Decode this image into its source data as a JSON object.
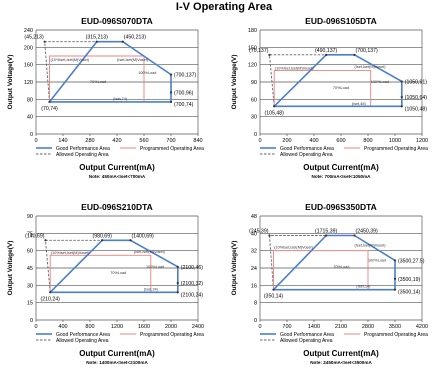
{
  "page_title": "I-V Operating Area",
  "colors": {
    "good": "#4a7fd0",
    "programmed": "#f08080",
    "allowed": "#666666",
    "grid": "#555555"
  },
  "legend_labels": {
    "good": "Good Performance Area",
    "programmed": "Programmed Operating Area",
    "allowed": "Allowed Operating Area"
  },
  "chart_data": [
    {
      "type": "line",
      "title": "EUD-096S070DTA",
      "xlabel": "Output Current(mA)",
      "ylabel": "Output Voltage(V)",
      "note": "Note: 450mA<Iset<700mA",
      "xticks": [
        0,
        140,
        280,
        420,
        560,
        700,
        840
      ],
      "yticks": [
        0,
        40,
        80,
        120,
        160,
        200,
        240
      ],
      "xlim": [
        0,
        840
      ],
      "ylim": [
        0,
        240
      ],
      "good_area": [
        [
          315,
          213
        ],
        [
          450,
          213
        ],
        [
          700,
          137
        ],
        [
          700,
          74
        ],
        [
          70,
          74
        ]
      ],
      "programmed_area": [
        [
          70,
          74
        ],
        [
          70,
          180
        ],
        [
          560,
          180
        ],
        [
          560,
          74
        ]
      ],
      "allowed_area": [
        [
          70,
          74
        ],
        [
          45,
          213
        ],
        [
          450,
          213
        ],
        [
          700,
          137
        ],
        [
          700,
          74
        ]
      ],
      "points": [
        {
          "x": 45,
          "y": 213,
          "label": "(45,213)",
          "pos": "tl"
        },
        {
          "x": 315,
          "y": 213,
          "label": "(315,213)",
          "pos": "tc"
        },
        {
          "x": 450,
          "y": 213,
          "label": "(450,213)",
          "pos": "tr"
        },
        {
          "x": 700,
          "y": 137,
          "label": "(700,137)",
          "pos": "r"
        },
        {
          "x": 700,
          "y": 96,
          "label": "(700,96)",
          "pos": "r"
        },
        {
          "x": 700,
          "y": 74,
          "label": "(700,74)",
          "pos": "rb"
        },
        {
          "x": 70,
          "y": 74,
          "label": "(70,74)",
          "pos": "b"
        }
      ],
      "annotations": [
        {
          "x": 75,
          "y": 168,
          "text": "(10%Iset,Iset(M)Voset)"
        },
        {
          "x": 420,
          "y": 168,
          "text": "(Iset,Iset(M)Voset)"
        },
        {
          "x": 280,
          "y": 118,
          "text": "70%Load"
        },
        {
          "x": 530,
          "y": 138,
          "text": "100%Load"
        },
        {
          "x": 400,
          "y": 78,
          "text": "(Iset,74)"
        }
      ]
    },
    {
      "type": "line",
      "title": "EUD-096S105DTA",
      "xlabel": "Output Current(mA)",
      "ylabel": "Output Voltage(V)",
      "note": "Note: 700mA<Iset<1050mA",
      "xticks": [
        0,
        200,
        400,
        600,
        800,
        1000,
        1200
      ],
      "yticks": [
        0,
        30,
        60,
        90,
        120,
        150,
        180
      ],
      "xlim": [
        0,
        1200
      ],
      "ylim": [
        0,
        180
      ],
      "good_area": [
        [
          490,
          137
        ],
        [
          700,
          137
        ],
        [
          1050,
          91
        ],
        [
          1050,
          48
        ],
        [
          105,
          48
        ]
      ],
      "programmed_area": [
        [
          105,
          48
        ],
        [
          105,
          110
        ],
        [
          820,
          110
        ],
        [
          820,
          48
        ]
      ],
      "allowed_area": [
        [
          105,
          48
        ],
        [
          70,
          137
        ],
        [
          700,
          137
        ],
        [
          1050,
          91
        ],
        [
          1050,
          48
        ]
      ],
      "points": [
        {
          "x": 70,
          "y": 137,
          "label": "(70,137)",
          "pos": "tl"
        },
        {
          "x": 490,
          "y": 137,
          "label": "(490,137)",
          "pos": "tc"
        },
        {
          "x": 700,
          "y": 137,
          "label": "(700,137)",
          "pos": "tr"
        },
        {
          "x": 1050,
          "y": 91,
          "label": "(1050,91)",
          "pos": "r"
        },
        {
          "x": 1050,
          "y": 64,
          "label": "(1050,64)",
          "pos": "r"
        },
        {
          "x": 1050,
          "y": 48,
          "label": "(1050,48)",
          "pos": "rb"
        },
        {
          "x": 105,
          "y": 48,
          "label": "(105,48)",
          "pos": "b"
        }
      ],
      "annotations": [
        {
          "x": 110,
          "y": 112,
          "text": "(10%Iset,Iset(M)Voset)"
        },
        {
          "x": 700,
          "y": 114,
          "text": "(Iset,Iset(M)Voset)"
        },
        {
          "x": 540,
          "y": 78,
          "text": "70%Load"
        },
        {
          "x": 820,
          "y": 88,
          "text": "100%Load"
        },
        {
          "x": 680,
          "y": 50,
          "text": "(Iset,48)"
        }
      ]
    },
    {
      "type": "line",
      "title": "EUD-096S210DTA",
      "xlabel": "Output Current(mA)",
      "ylabel": "Output Voltage(V)",
      "note": "Note: 1400mA<Iset<2100mA",
      "xticks": [
        0,
        400,
        800,
        1200,
        1600,
        2000,
        2400
      ],
      "yticks": [
        0,
        15,
        30,
        45,
        60,
        75,
        90
      ],
      "xlim": [
        0,
        2400
      ],
      "ylim": [
        0,
        90
      ],
      "good_area": [
        [
          980,
          69
        ],
        [
          1400,
          69
        ],
        [
          2100,
          46
        ],
        [
          2100,
          24
        ],
        [
          210,
          24
        ]
      ],
      "programmed_area": [
        [
          210,
          24
        ],
        [
          210,
          56
        ],
        [
          1700,
          56
        ],
        [
          1700,
          24
        ]
      ],
      "allowed_area": [
        [
          210,
          24
        ],
        [
          140,
          69
        ],
        [
          1400,
          69
        ],
        [
          2100,
          46
        ],
        [
          2100,
          24
        ]
      ],
      "points": [
        {
          "x": 140,
          "y": 69,
          "label": "(140,69)",
          "pos": "tl"
        },
        {
          "x": 980,
          "y": 69,
          "label": "(980,69)",
          "pos": "tc"
        },
        {
          "x": 1400,
          "y": 69,
          "label": "(1400,69)",
          "pos": "tr"
        },
        {
          "x": 2100,
          "y": 46,
          "label": "(2100,46)",
          "pos": "r"
        },
        {
          "x": 2100,
          "y": 32,
          "label": "(2100,32)",
          "pos": "r"
        },
        {
          "x": 2100,
          "y": 24,
          "label": "(2100,24)",
          "pos": "rb"
        },
        {
          "x": 210,
          "y": 24,
          "label": "(210,24)",
          "pos": "b"
        }
      ],
      "annotations": [
        {
          "x": 220,
          "y": 57,
          "text": "(10%Iset,Iset(M)Voset)"
        },
        {
          "x": 1450,
          "y": 58,
          "text": "(Iset,Iset(M)Voset)"
        },
        {
          "x": 1100,
          "y": 40,
          "text": "70%Load"
        },
        {
          "x": 1630,
          "y": 45,
          "text": "100%Load"
        },
        {
          "x": 1600,
          "y": 25.5,
          "text": "(Iset,24)"
        }
      ]
    },
    {
      "type": "line",
      "title": "EUD-096S350DTA",
      "xlabel": "Output Current(mA)",
      "ylabel": "Output Voltage(V)",
      "note": "Note: 2450mA<Iset<3500mA",
      "xticks": [
        0,
        700,
        1400,
        2100,
        2800,
        3500,
        4200
      ],
      "yticks": [
        0,
        8,
        16,
        24,
        32,
        40,
        48
      ],
      "xlim": [
        0,
        4200
      ],
      "ylim": [
        0,
        48
      ],
      "good_area": [
        [
          1715,
          39
        ],
        [
          2450,
          39
        ],
        [
          3500,
          27.5
        ],
        [
          3500,
          14
        ],
        [
          350,
          14
        ]
      ],
      "programmed_area": [
        [
          350,
          14
        ],
        [
          350,
          32
        ],
        [
          2800,
          32
        ],
        [
          2800,
          14
        ]
      ],
      "allowed_area": [
        [
          350,
          14
        ],
        [
          245,
          39
        ],
        [
          2450,
          39
        ],
        [
          3500,
          27.5
        ],
        [
          3500,
          14
        ]
      ],
      "points": [
        {
          "x": 245,
          "y": 39,
          "label": "(245,39)",
          "pos": "tl"
        },
        {
          "x": 1715,
          "y": 39,
          "label": "(1715,39)",
          "pos": "tc"
        },
        {
          "x": 2450,
          "y": 39,
          "label": "(2450,39)",
          "pos": "tr"
        },
        {
          "x": 3500,
          "y": 27.5,
          "label": "(3500,27.5)",
          "pos": "r"
        },
        {
          "x": 3500,
          "y": 19,
          "label": "(3500,19)",
          "pos": "r"
        },
        {
          "x": 3500,
          "y": 14,
          "label": "(3500,14)",
          "pos": "rb"
        },
        {
          "x": 350,
          "y": 14,
          "label": "(350,14)",
          "pos": "b"
        }
      ],
      "annotations": [
        {
          "x": 370,
          "y": 33,
          "text": "(10%Iset,Iset(M)Voset)"
        },
        {
          "x": 2450,
          "y": 34,
          "text": "(Iset,Iset(M)Voset)"
        },
        {
          "x": 1900,
          "y": 24,
          "text": "70%Load"
        },
        {
          "x": 2800,
          "y": 27,
          "text": "100%Load"
        },
        {
          "x": 2500,
          "y": 15,
          "text": "(Iset,14)"
        }
      ]
    }
  ]
}
